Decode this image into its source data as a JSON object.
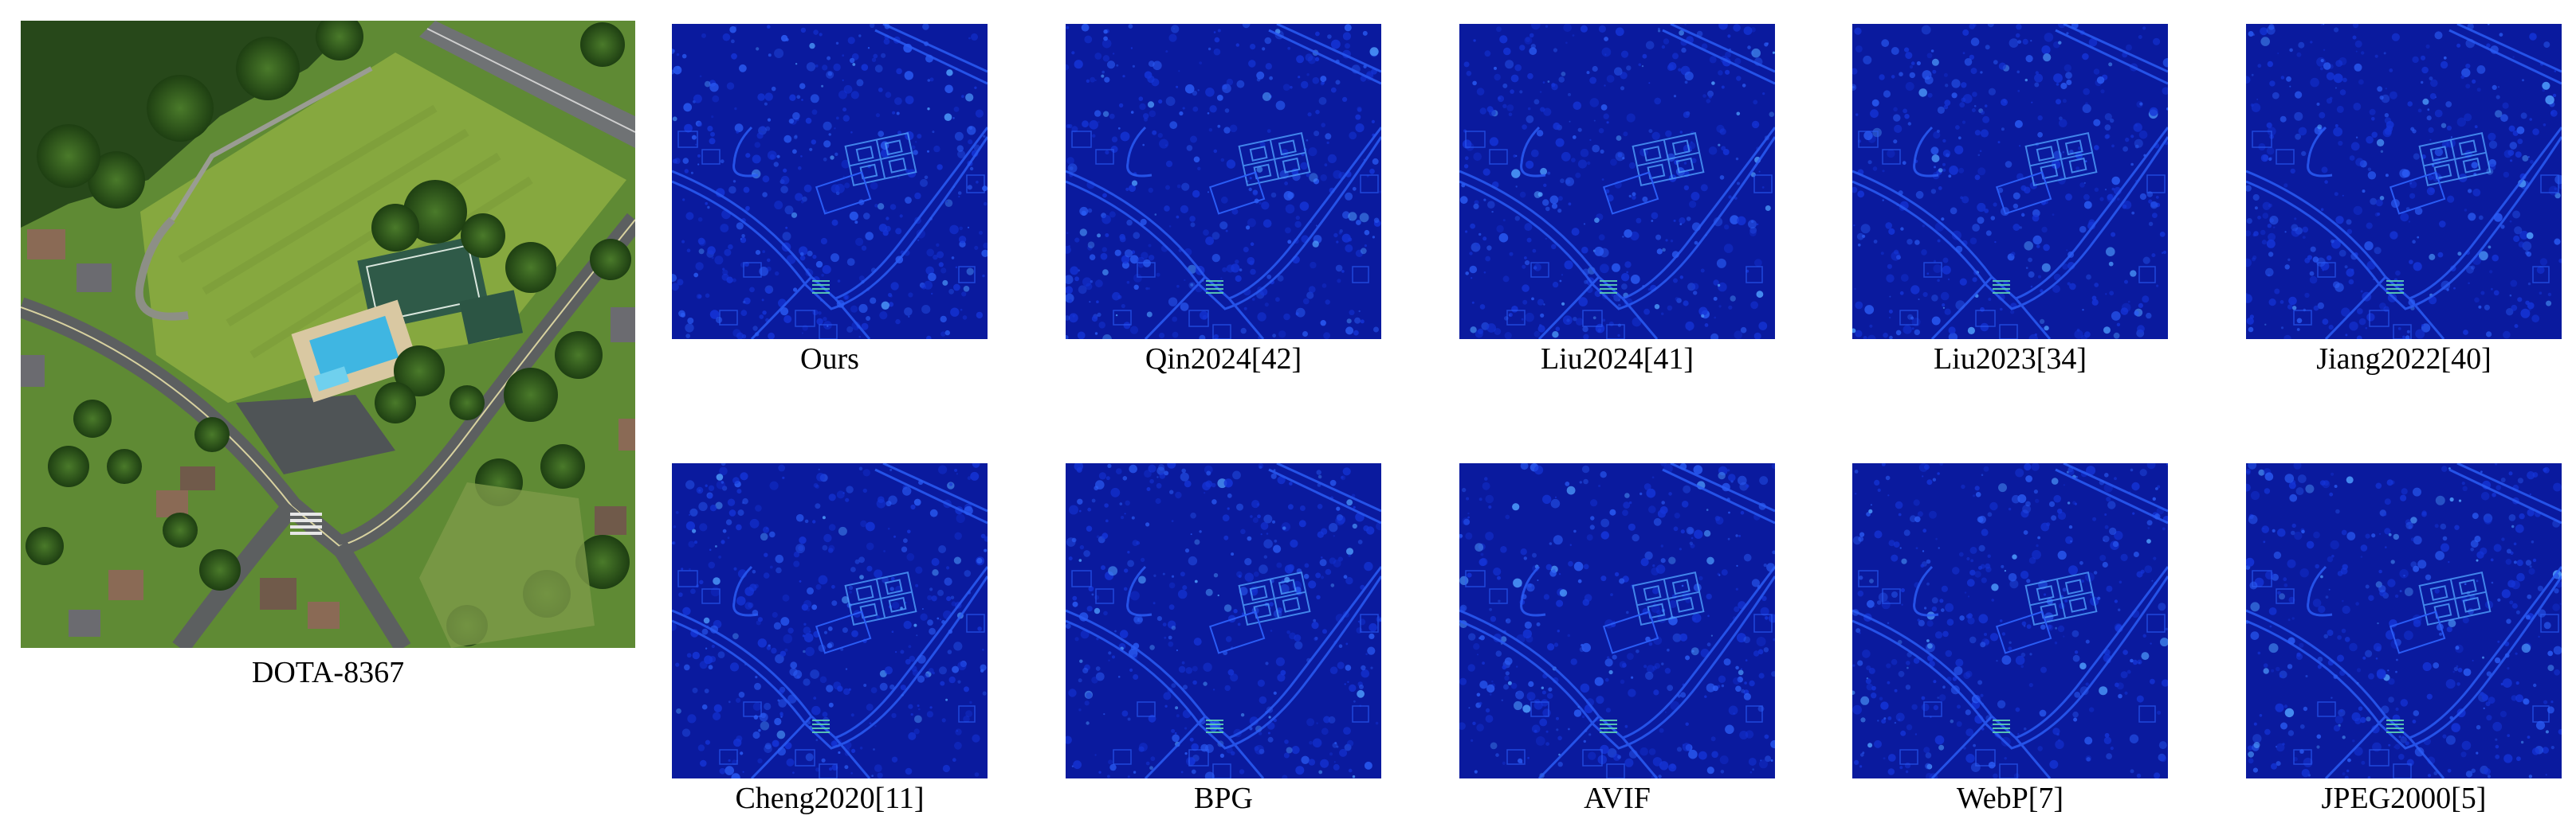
{
  "original": {
    "caption": "DOTA-8367",
    "icon": "aerial-photo"
  },
  "comparison": {
    "colormap": [
      "#0a1a9e",
      "#1535d8",
      "#2a5cf5",
      "#4fa0ff",
      "#5fd3b5"
    ],
    "rows": [
      [
        {
          "label": "Ours"
        },
        {
          "label": "Qin2024[42]"
        },
        {
          "label": "Liu2024[41]"
        },
        {
          "label": "Liu2023[34]"
        },
        {
          "label": "Jiang2022[40]"
        }
      ],
      [
        {
          "label": "Cheng2020[11]"
        },
        {
          "label": "BPG"
        },
        {
          "label": "AVIF"
        },
        {
          "label": "WebP[7]"
        },
        {
          "label": "JPEG2000[5]"
        }
      ]
    ]
  }
}
